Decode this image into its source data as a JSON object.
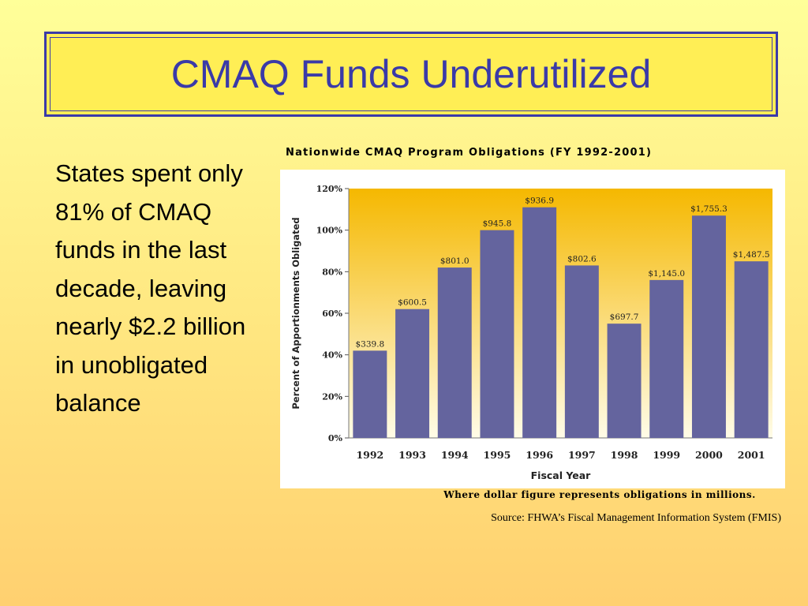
{
  "slide": {
    "title": "CMAQ Funds Underutilized",
    "body_text": "States spent only 81% of CMAQ funds in the last decade, leaving nearly $2.2 billion in unobligated balance",
    "chart_heading": "Nationwide CMAQ Program Obligations (FY 1992-2001)",
    "footnote": "Where dollar figure represents obligations in millions.",
    "source": "Source: FHWA’s Fiscal Management Information System (FMIS)"
  },
  "colors": {
    "title_text": "#3a3aa8",
    "title_border": "#3a3aa8",
    "title_background": "#ffee55",
    "bar_fill": "#64649e",
    "plot_gradient_top": "#f5b800",
    "plot_gradient_bottom": "#fffce8"
  },
  "chart_data": {
    "type": "bar",
    "title": "Nationwide CMAQ Program Obligations (FY 1992-2001)",
    "xlabel": "Fiscal Year",
    "ylabel": "Percent of Apportionments Obligated",
    "categories": [
      "1992",
      "1993",
      "1994",
      "1995",
      "1996",
      "1997",
      "1998",
      "1999",
      "2000",
      "2001"
    ],
    "values": [
      42,
      62,
      82,
      100,
      111,
      83,
      55,
      76,
      107,
      85
    ],
    "data_labels": [
      "$339.8",
      "$600.5",
      "$801.0",
      "$945.8",
      "$936.9",
      "$802.6",
      "$697.7",
      "$1,145.0",
      "$1,755.3",
      "$1,487.5"
    ],
    "ylim": [
      0,
      120
    ],
    "yticks": [
      0,
      20,
      40,
      60,
      80,
      100,
      120
    ],
    "ytick_labels": [
      "0%",
      "20%",
      "40%",
      "60%",
      "80%",
      "100%",
      "120%"
    ],
    "grid": false,
    "legend": "none"
  }
}
